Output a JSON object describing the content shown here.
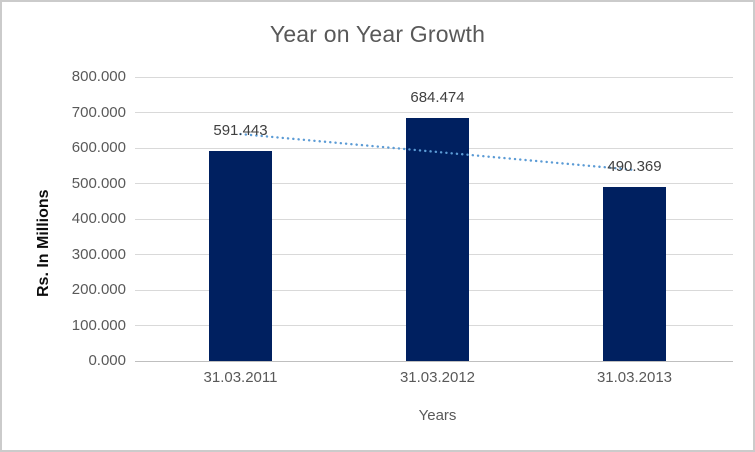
{
  "chart_data": {
    "type": "bar",
    "title": "Year on Year Growth",
    "xlabel": "Years",
    "ylabel": "Rs. In Millions",
    "categories": [
      "31.03.2011",
      "31.03.2012",
      "31.03.2013"
    ],
    "values": [
      591.443,
      684.474,
      490.369
    ],
    "value_labels": [
      "591.443",
      "684.474",
      "490.369"
    ],
    "ylim": [
      0,
      800
    ],
    "ytick_step": 100,
    "ytick_labels": [
      "0.000",
      "100.000",
      "200.000",
      "300.000",
      "400.000",
      "500.000",
      "600.000",
      "700.000",
      "800.000"
    ],
    "grid": true,
    "legend": "none",
    "bar_color": "#002060",
    "trendline": {
      "type": "linear",
      "style": "dotted",
      "color": "#5B9BD5",
      "start_value": 639.3,
      "end_value": 538.2
    }
  }
}
